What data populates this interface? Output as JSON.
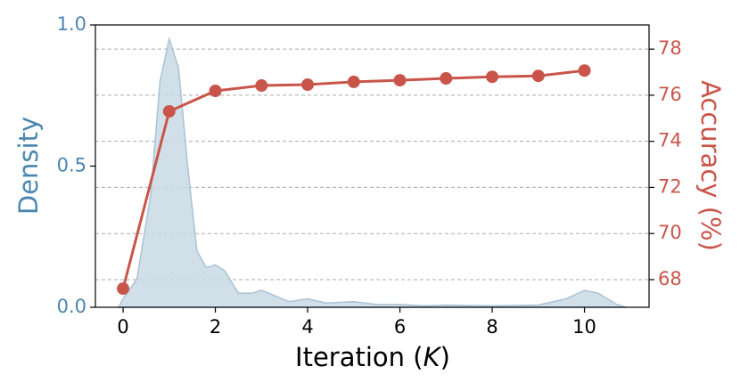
{
  "chart_data": {
    "type": "combo",
    "ylabel": "Density",
    "y2label": "Accuracy (%)",
    "xlabel": [
      "Iteration (",
      "K",
      ")"
    ],
    "xlim": [
      -0.6,
      11.4
    ],
    "xticks": [
      0,
      2,
      4,
      6,
      8,
      10
    ],
    "ylim": [
      0,
      1
    ],
    "yticks": [
      {
        "value": 0,
        "label": "0.0"
      },
      {
        "value": 0.5,
        "label": "0.5"
      },
      {
        "value": 1,
        "label": "1.0"
      }
    ],
    "y2lim": [
      66.8,
      79.05
    ],
    "y2ticks": [
      68,
      70,
      72,
      74,
      76,
      78
    ],
    "grid": "y2",
    "left_color": "#4a86b0",
    "right_color": "#c9554a",
    "series": [
      {
        "type": "area",
        "axis": "y",
        "color": "#c9d9e5",
        "edge_color": "#a9c3d6",
        "x": [
          -0.1,
          0,
          0.3,
          0.6,
          0.8,
          1.0,
          1.2,
          1.4,
          1.6,
          1.8,
          2.0,
          2.2,
          2.5,
          2.8,
          3.0,
          3.3,
          3.6,
          4.0,
          4.4,
          5.0,
          5.5,
          6.0,
          6.5,
          7.0,
          8.0,
          9.0,
          9.6,
          10.0,
          10.3,
          10.7,
          10.9
        ],
        "values": [
          0,
          0.03,
          0.1,
          0.4,
          0.8,
          0.95,
          0.85,
          0.5,
          0.2,
          0.14,
          0.15,
          0.13,
          0.05,
          0.05,
          0.06,
          0.04,
          0.02,
          0.03,
          0.015,
          0.02,
          0.01,
          0.01,
          0.005,
          0.008,
          0.005,
          0.008,
          0.03,
          0.06,
          0.05,
          0.01,
          0
        ]
      },
      {
        "type": "line",
        "axis": "y2",
        "color": "#c9554a",
        "x": [
          0,
          1,
          2,
          3,
          4,
          5,
          6,
          7,
          8,
          9,
          10
        ],
        "values": [
          67.61,
          75.3,
          76.19,
          76.42,
          76.46,
          76.58,
          76.65,
          76.73,
          76.8,
          76.84,
          77.07
        ]
      }
    ]
  }
}
